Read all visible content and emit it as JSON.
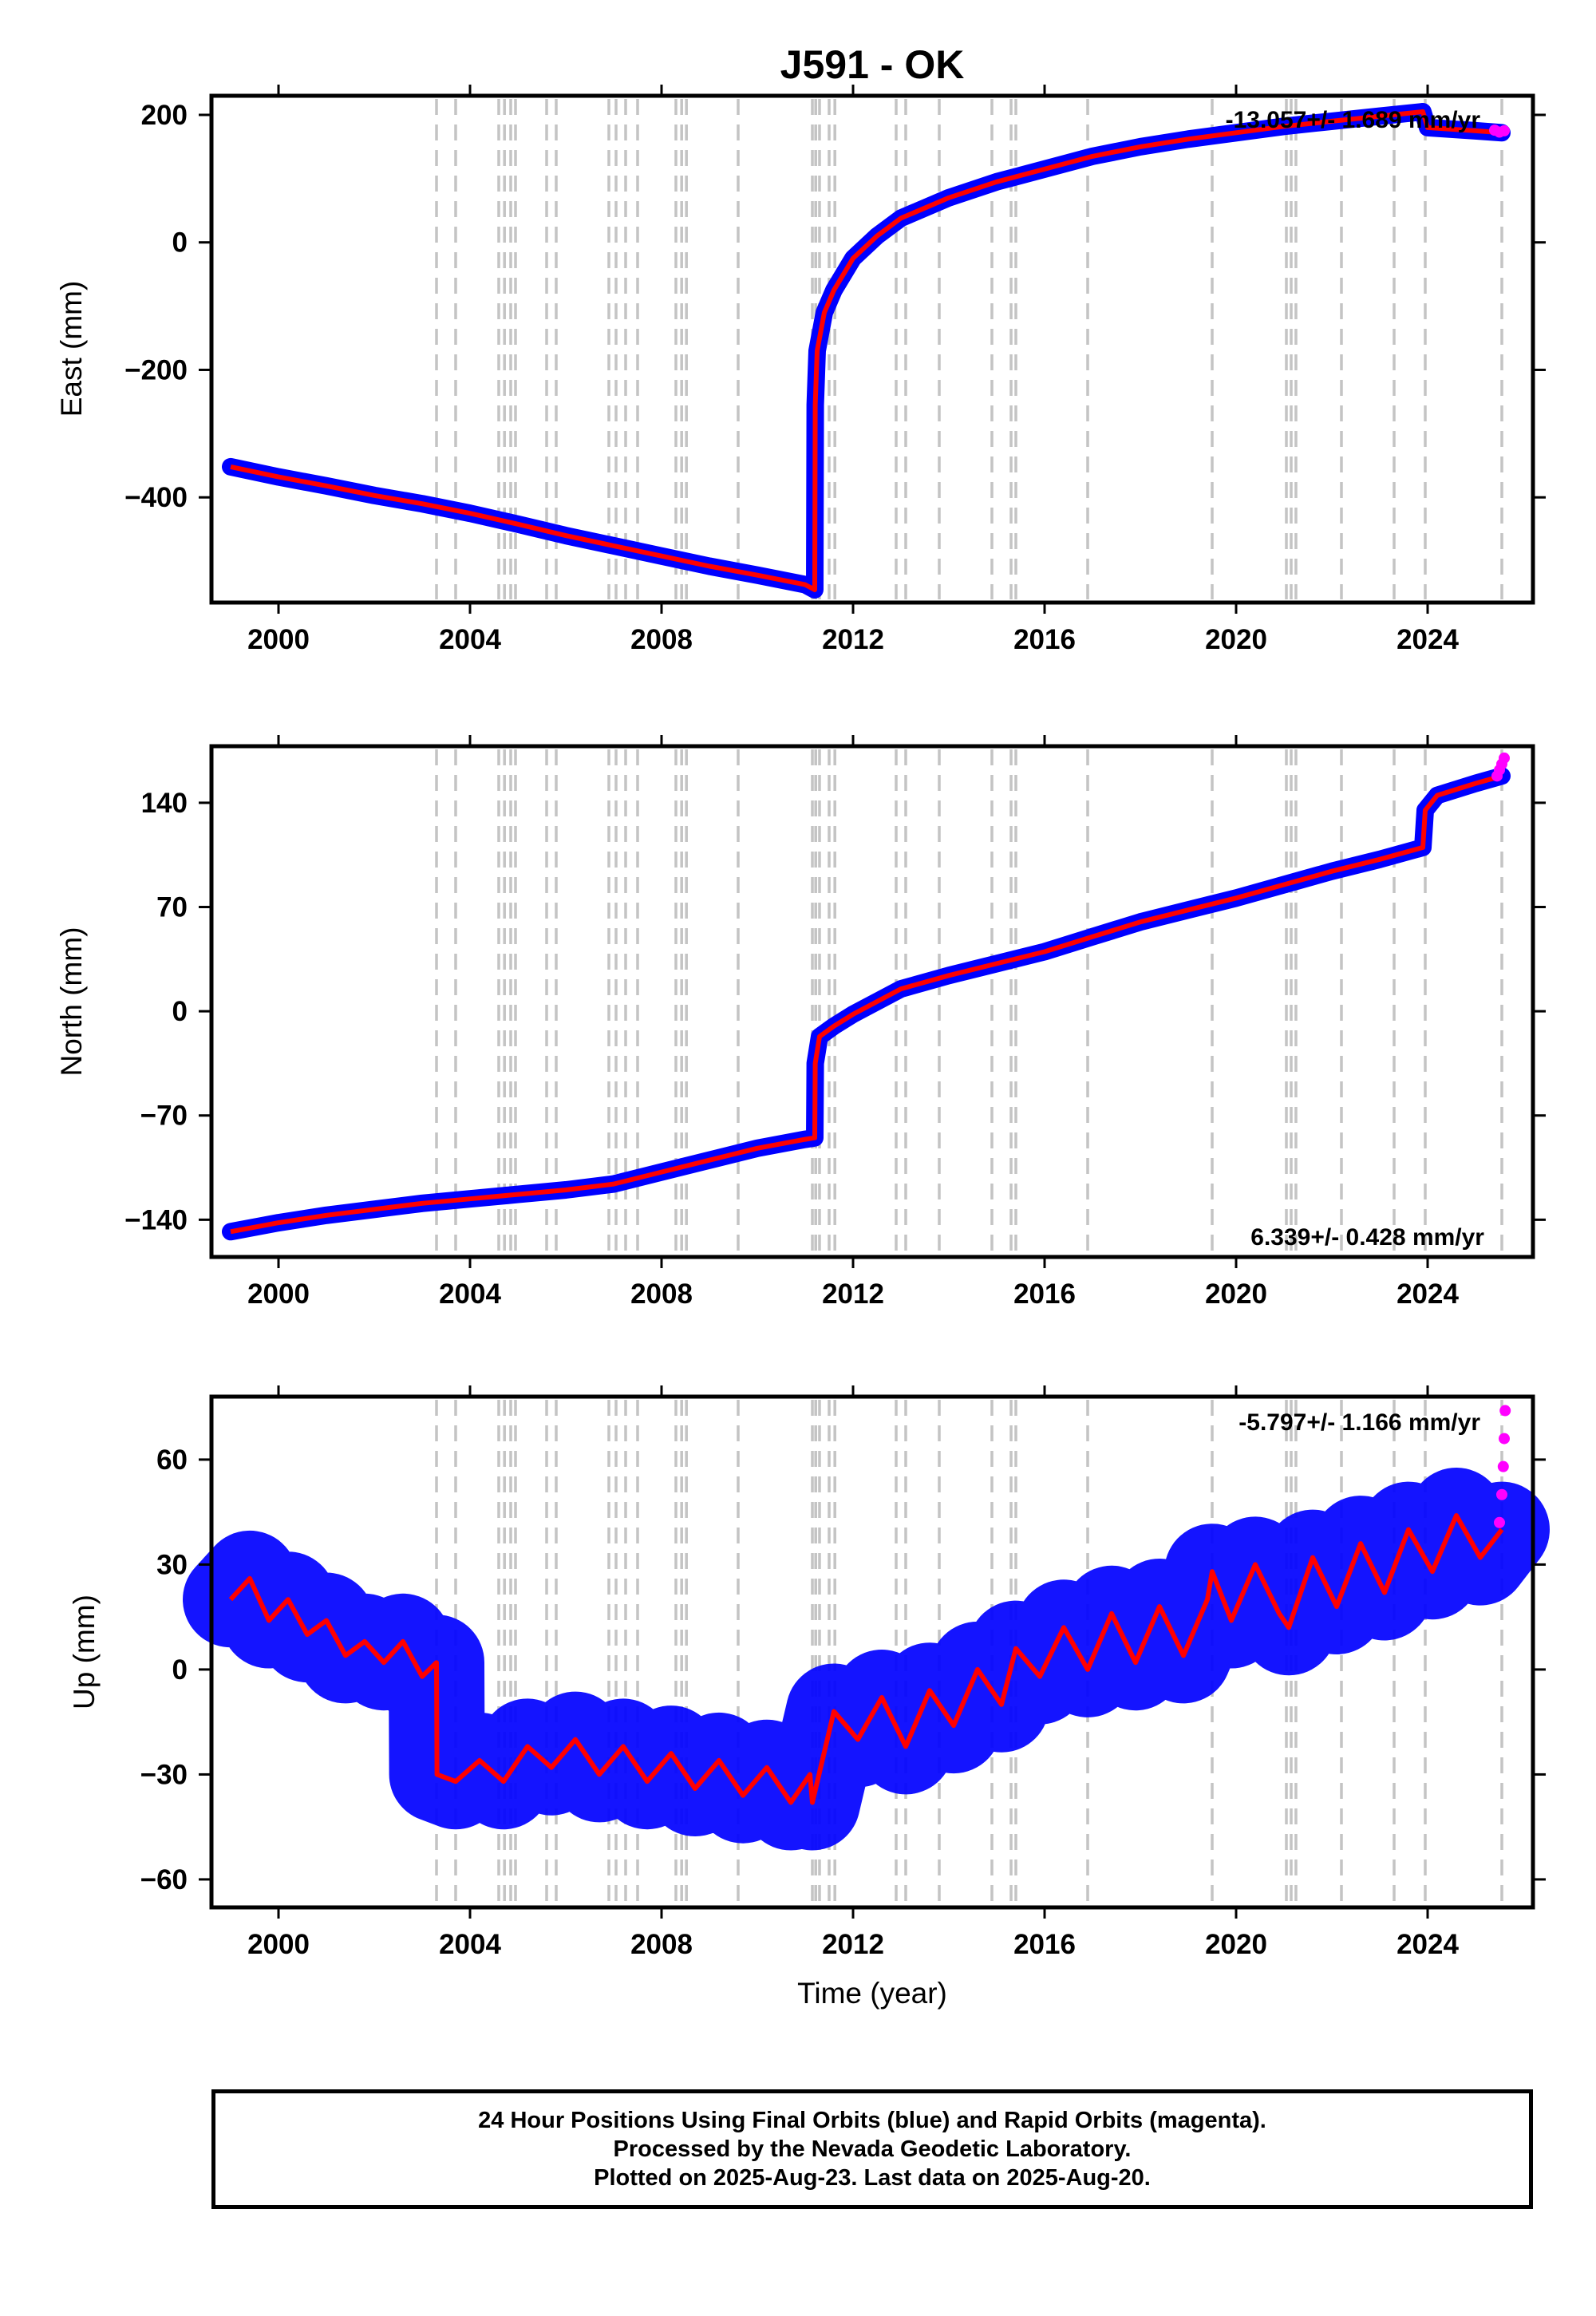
{
  "title": "J591 - OK",
  "xlabel": "Time (year)",
  "caption": [
    "24 Hour Positions Using Final Orbits (blue) and Rapid Orbits (magenta).",
    "Processed by the Nevada Geodetic Laboratory.",
    "Plotted on 2025-Aug-23. Last data on 2025-Aug-20."
  ],
  "colors": {
    "final_orbits": "#0000ff",
    "rapid_orbits": "#ff00ff",
    "model_fit": "#ff0000",
    "event_lines": "#c4c4c4"
  },
  "chart_data": [
    {
      "type": "scatter",
      "ylabel": "East (mm)",
      "rate_text": "-13.057+/- 1.689 mm/yr",
      "xlim": [
        1998.6,
        2026.2
      ],
      "ylim": [
        -565,
        230
      ],
      "xticks": [
        2000,
        2004,
        2008,
        2012,
        2016,
        2020,
        2024
      ],
      "yticks": [
        -400,
        -200,
        0,
        200
      ],
      "event_years": [
        2003.3,
        2003.7,
        2004.6,
        2004.72,
        2004.85,
        2004.95,
        2005.6,
        2005.8,
        2006.9,
        2007.05,
        2007.25,
        2007.5,
        2008.3,
        2008.42,
        2008.52,
        2009.6,
        2011.15,
        2011.22,
        2011.3,
        2011.5,
        2011.62,
        2012.9,
        2013.1,
        2013.8,
        2014.9,
        2015.3,
        2015.4,
        2016.9,
        2019.5,
        2021.05,
        2021.15,
        2021.25,
        2022.2,
        2023.3,
        2023.95,
        2025.55
      ],
      "series": [
        {
          "role": "final",
          "x": [
            1999.0,
            2000.0,
            2001.0,
            2002.0,
            2003.0,
            2004.0,
            2005.0,
            2006.0,
            2007.0,
            2008.0,
            2009.0,
            2010.0,
            2011.0,
            2011.2,
            2011.21,
            2011.25,
            2011.4,
            2011.6,
            2012.0,
            2012.5,
            2013.0,
            2014.0,
            2015.0,
            2016.0,
            2017.0,
            2018.0,
            2019.0,
            2020.0,
            2021.0,
            2022.0,
            2023.0,
            2023.9,
            2024.0,
            2025.0,
            2025.55
          ],
          "y": [
            -352,
            -368,
            -382,
            -397,
            -410,
            -425,
            -442,
            -460,
            -476,
            -492,
            -508,
            -522,
            -537,
            -545,
            -255,
            -170,
            -110,
            -75,
            -25,
            10,
            38,
            70,
            95,
            115,
            135,
            150,
            162,
            172,
            182,
            190,
            198,
            205,
            180,
            175,
            172
          ]
        },
        {
          "role": "rapid",
          "x": [
            2025.4,
            2025.5,
            2025.6
          ],
          "y": [
            176,
            173,
            175
          ]
        }
      ]
    },
    {
      "type": "scatter",
      "ylabel": "North (mm)",
      "rate_text": "6.339+/- 0.428 mm/yr",
      "xlim": [
        1998.6,
        2026.2
      ],
      "ylim": [
        -165,
        178
      ],
      "xticks": [
        2000,
        2004,
        2008,
        2012,
        2016,
        2020,
        2024
      ],
      "yticks": [
        -140,
        -70,
        0,
        70,
        140
      ],
      "event_years": [
        2003.3,
        2003.7,
        2004.6,
        2004.72,
        2004.85,
        2004.95,
        2005.6,
        2005.8,
        2006.9,
        2007.05,
        2007.25,
        2007.5,
        2008.3,
        2008.42,
        2008.52,
        2009.6,
        2011.15,
        2011.22,
        2011.3,
        2011.5,
        2011.62,
        2012.9,
        2013.1,
        2013.8,
        2014.9,
        2015.3,
        2015.4,
        2016.9,
        2019.5,
        2021.05,
        2021.15,
        2021.25,
        2022.2,
        2023.3,
        2023.95,
        2025.55
      ],
      "series": [
        {
          "role": "final",
          "x": [
            1999.0,
            2000.0,
            2001.0,
            2002.0,
            2003.0,
            2004.0,
            2005.0,
            2006.0,
            2007.0,
            2008.0,
            2009.0,
            2010.0,
            2011.0,
            2011.2,
            2011.21,
            2011.3,
            2011.6,
            2012.0,
            2013.0,
            2014.0,
            2015.0,
            2016.0,
            2017.0,
            2018.0,
            2019.0,
            2020.0,
            2021.0,
            2022.0,
            2023.0,
            2023.9,
            2023.95,
            2024.2,
            2025.0,
            2025.55
          ],
          "y": [
            -148,
            -142,
            -137,
            -133,
            -129,
            -126,
            -123,
            -120,
            -116,
            -108,
            -100,
            -92,
            -86,
            -85,
            -35,
            -17,
            -10,
            -2,
            15,
            24,
            32,
            40,
            50,
            60,
            68,
            76,
            85,
            94,
            102,
            110,
            135,
            145,
            153,
            158
          ]
        },
        {
          "role": "rapid",
          "x": [
            2025.45,
            2025.5,
            2025.55,
            2025.6
          ],
          "y": [
            158,
            162,
            166,
            170
          ]
        }
      ]
    },
    {
      "type": "scatter",
      "ylabel": "Up (mm)",
      "rate_text": "-5.797+/- 1.166 mm/yr",
      "xlim": [
        1998.6,
        2026.2
      ],
      "ylim": [
        -68,
        78
      ],
      "xticks": [
        2000,
        2004,
        2008,
        2012,
        2016,
        2020,
        2024
      ],
      "yticks": [
        -60,
        -30,
        0,
        30,
        60
      ],
      "event_years": [
        2003.3,
        2003.7,
        2004.6,
        2004.72,
        2004.85,
        2004.95,
        2005.6,
        2005.8,
        2006.9,
        2007.05,
        2007.25,
        2007.5,
        2008.3,
        2008.42,
        2008.52,
        2009.6,
        2011.15,
        2011.22,
        2011.3,
        2011.5,
        2011.62,
        2012.9,
        2013.1,
        2013.8,
        2014.9,
        2015.3,
        2015.4,
        2016.9,
        2019.5,
        2021.05,
        2021.15,
        2021.25,
        2022.2,
        2023.3,
        2023.95,
        2025.55
      ],
      "series": [
        {
          "role": "fit",
          "x": [
            1999.0,
            1999.4,
            1999.8,
            2000.2,
            2000.6,
            2001.0,
            2001.4,
            2001.8,
            2002.2,
            2002.6,
            2003.0,
            2003.3,
            2003.31,
            2003.7,
            2004.2,
            2004.7,
            2005.2,
            2005.7,
            2006.2,
            2006.7,
            2007.2,
            2007.7,
            2008.2,
            2008.7,
            2009.2,
            2009.7,
            2010.2,
            2010.7,
            2011.1,
            2011.15,
            2011.6,
            2012.1,
            2012.6,
            2013.1,
            2013.6,
            2014.1,
            2014.6,
            2015.1,
            2015.4,
            2015.9,
            2016.4,
            2016.9,
            2017.4,
            2017.9,
            2018.4,
            2018.9,
            2019.4,
            2019.5,
            2019.9,
            2020.4,
            2020.9,
            2021.1,
            2021.6,
            2022.1,
            2022.6,
            2023.1,
            2023.6,
            2024.1,
            2024.6,
            2025.1,
            2025.55
          ],
          "y": [
            20,
            26,
            14,
            20,
            10,
            14,
            4,
            8,
            2,
            8,
            -2,
            2,
            -30,
            -32,
            -26,
            -32,
            -22,
            -28,
            -20,
            -30,
            -22,
            -32,
            -24,
            -34,
            -26,
            -36,
            -28,
            -38,
            -30,
            -38,
            -12,
            -20,
            -8,
            -22,
            -6,
            -16,
            0,
            -10,
            6,
            -2,
            12,
            0,
            16,
            2,
            18,
            4,
            20,
            28,
            14,
            30,
            16,
            12,
            32,
            18,
            36,
            22,
            40,
            28,
            44,
            32,
            40
          ]
        },
        {
          "role": "rapid",
          "x": [
            2025.5,
            2025.55,
            2025.58,
            2025.6,
            2025.62
          ],
          "y": [
            42,
            50,
            58,
            66,
            74
          ]
        }
      ]
    }
  ]
}
